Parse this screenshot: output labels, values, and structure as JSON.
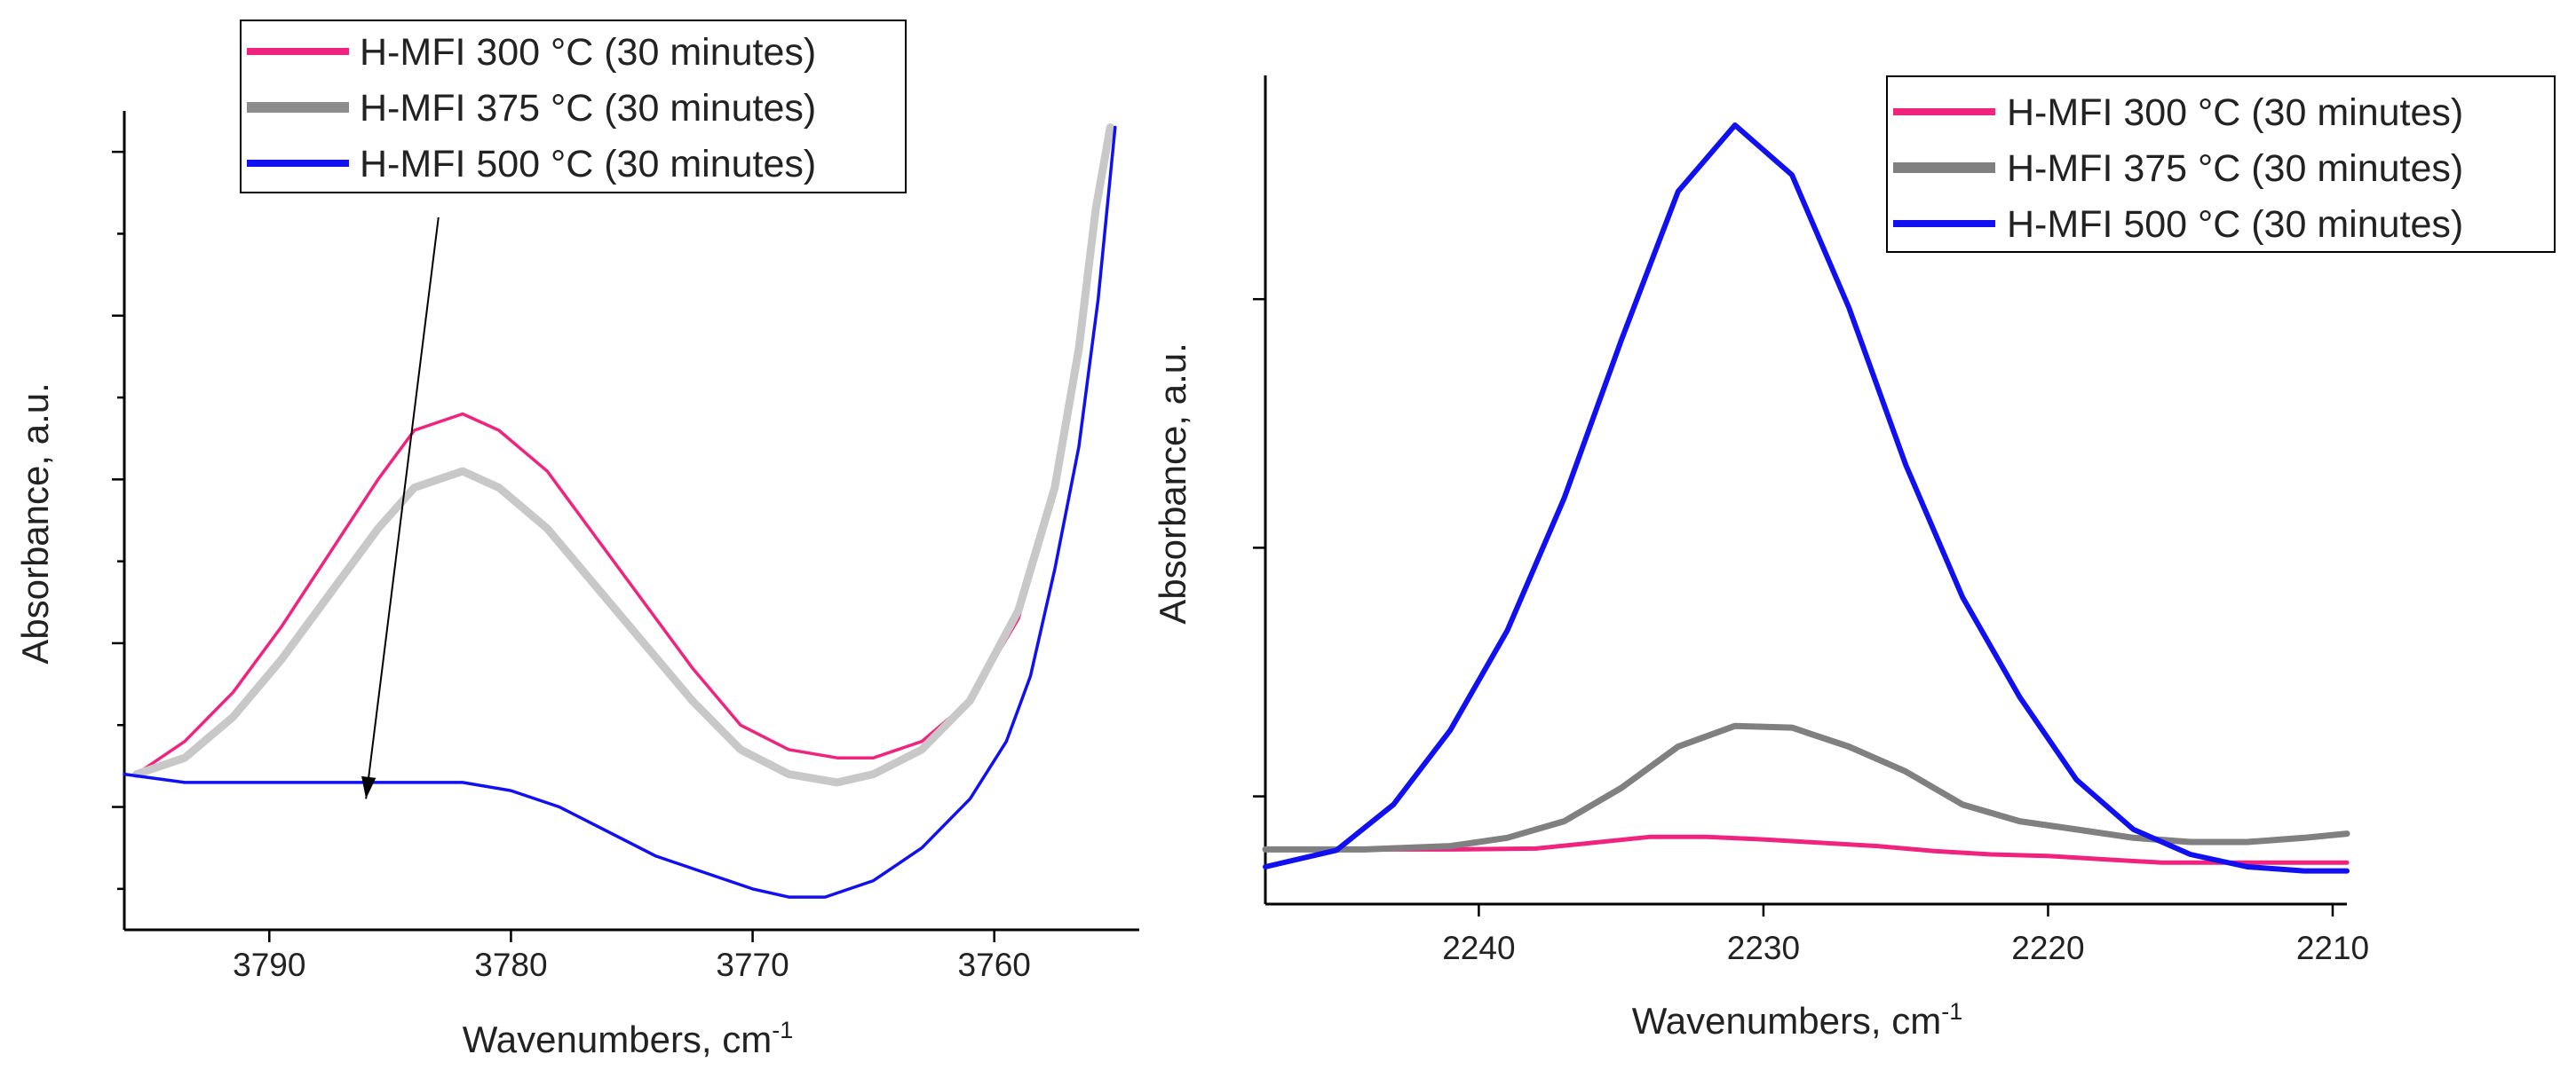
{
  "chart_data": [
    {
      "type": "line",
      "panel": "left",
      "xlabel": "Wavenumbers, cm",
      "xlabel_superscript": "-1",
      "ylabel": "Absorbance, a.u.",
      "xlim": [
        3796,
        3754
      ],
      "ylim": [
        0,
        1
      ],
      "x_reversed": true,
      "xticks": [
        3790,
        3780,
        3770,
        3760
      ],
      "xtick_labels": [
        "3790",
        "3780",
        "3770",
        "3760"
      ],
      "ytick_values": [
        0.05,
        0.15,
        0.25,
        0.35,
        0.45,
        0.55,
        0.65,
        0.75,
        0.85,
        0.95
      ],
      "ytick_major": [
        false,
        true,
        false,
        true,
        false,
        true,
        false,
        true,
        false,
        true
      ],
      "show_ytick_labels": false,
      "legend_position": "top-center",
      "legend": [
        "H-MFI 300 °C (30 minutes)",
        "H-MFI 375 °C (30 minutes)",
        "H-MFI 500 °C (30 minutes)"
      ],
      "legend_colors": [
        "#f0237f",
        "#8c8c8c",
        "#1010f0"
      ],
      "annotation": {
        "type": "arrow",
        "from": [
          3783,
          0.87
        ],
        "to": [
          3786,
          0.16
        ],
        "color": "#000000"
      },
      "series": [
        {
          "name": "H-MFI 300 °C (30 minutes)",
          "color": "#f0237f",
          "x": [
            3795.5,
            3793.5,
            3791.5,
            3789.5,
            3787.5,
            3785.5,
            3784,
            3782,
            3780.5,
            3778.5,
            3776.5,
            3774.5,
            3772.5,
            3770.5,
            3768.5,
            3766.5,
            3765,
            3763,
            3761,
            3759,
            3757.5,
            3756.5,
            3755.8,
            3755.2
          ],
          "y": [
            0.19,
            0.23,
            0.29,
            0.37,
            0.46,
            0.55,
            0.61,
            0.63,
            0.61,
            0.56,
            0.48,
            0.4,
            0.32,
            0.25,
            0.22,
            0.21,
            0.21,
            0.23,
            0.28,
            0.38,
            0.53,
            0.7,
            0.87,
            0.98
          ]
        },
        {
          "name": "H-MFI 375 °C (30 minutes)",
          "color": "#c8c8c8",
          "x": [
            3795.5,
            3793.5,
            3791.5,
            3789.5,
            3787.5,
            3785.5,
            3784,
            3782,
            3780.5,
            3778.5,
            3776.5,
            3774.5,
            3772.5,
            3770.5,
            3768.5,
            3766.5,
            3765,
            3763,
            3761,
            3759,
            3757.5,
            3756.5,
            3755.8,
            3755.2
          ],
          "y": [
            0.19,
            0.21,
            0.26,
            0.33,
            0.41,
            0.49,
            0.54,
            0.56,
            0.54,
            0.49,
            0.42,
            0.35,
            0.28,
            0.22,
            0.19,
            0.18,
            0.19,
            0.22,
            0.28,
            0.39,
            0.54,
            0.71,
            0.88,
            0.98
          ]
        },
        {
          "name": "H-MFI 500 °C (30 minutes)",
          "color": "#1010f0",
          "x": [
            3796,
            3793.5,
            3791,
            3788.5,
            3786,
            3784,
            3782,
            3780,
            3778,
            3776,
            3774,
            3772,
            3770,
            3768.5,
            3767,
            3765,
            3763,
            3761,
            3759.5,
            3758.5,
            3757.5,
            3756.5,
            3755.7,
            3755
          ],
          "y": [
            0.19,
            0.18,
            0.18,
            0.18,
            0.18,
            0.18,
            0.18,
            0.17,
            0.15,
            0.12,
            0.09,
            0.07,
            0.05,
            0.04,
            0.04,
            0.06,
            0.1,
            0.16,
            0.23,
            0.31,
            0.44,
            0.59,
            0.77,
            0.98
          ]
        }
      ]
    },
    {
      "type": "line",
      "panel": "right",
      "xlabel": "Wavenumbers, cm",
      "xlabel_superscript": "-1",
      "ylabel": "Absorbance, a.u.",
      "xlim": [
        2247.5,
        2209.5
      ],
      "ylim": [
        0,
        1
      ],
      "x_reversed": true,
      "xticks": [
        2240,
        2230,
        2220,
        2210
      ],
      "xtick_labels": [
        "2240",
        "2230",
        "2220",
        "2210"
      ],
      "ytick_values": [
        0.13,
        0.43,
        0.73
      ],
      "ytick_major": [
        true,
        true,
        true
      ],
      "show_ytick_labels": false,
      "legend_position": "top-right",
      "legend": [
        "H-MFI 300 °C (30 minutes)",
        "H-MFI 375 °C (30 minutes)",
        "H-MFI 500 °C (30 minutes)"
      ],
      "legend_colors": [
        "#f0237f",
        "#808080",
        "#1010f0"
      ],
      "series": [
        {
          "name": "H-MFI 300 °C (30 minutes)",
          "color": "#f0237f",
          "x": [
            2247.5,
            2244,
            2241,
            2238,
            2236,
            2234,
            2232,
            2230,
            2228,
            2226,
            2224,
            2222,
            2220,
            2218,
            2216,
            2214,
            2212,
            2209.5
          ],
          "y": [
            0.066,
            0.066,
            0.066,
            0.067,
            0.074,
            0.081,
            0.081,
            0.078,
            0.074,
            0.07,
            0.064,
            0.06,
            0.058,
            0.054,
            0.05,
            0.05,
            0.05,
            0.05
          ]
        },
        {
          "name": "H-MFI 375 °C (30 minutes)",
          "color": "#808080",
          "x": [
            2247.5,
            2244,
            2241,
            2239,
            2237,
            2235,
            2233,
            2231,
            2229,
            2227,
            2225,
            2223,
            2221,
            2219,
            2217,
            2215,
            2213,
            2211,
            2209.5
          ],
          "y": [
            0.066,
            0.066,
            0.07,
            0.08,
            0.1,
            0.14,
            0.19,
            0.215,
            0.213,
            0.19,
            0.16,
            0.12,
            0.1,
            0.09,
            0.08,
            0.075,
            0.075,
            0.08,
            0.085
          ]
        },
        {
          "name": "H-MFI 500 °C (30 minutes)",
          "color": "#1010f0",
          "x": [
            2247.5,
            2245,
            2243,
            2241,
            2239,
            2237,
            2235,
            2233,
            2231,
            2229,
            2227,
            2225,
            2223,
            2221,
            2219,
            2217,
            2215,
            2213,
            2211,
            2209.5
          ],
          "y": [
            0.045,
            0.065,
            0.12,
            0.21,
            0.33,
            0.49,
            0.68,
            0.86,
            0.94,
            0.88,
            0.72,
            0.53,
            0.37,
            0.25,
            0.15,
            0.09,
            0.06,
            0.045,
            0.04,
            0.04
          ]
        }
      ]
    }
  ]
}
